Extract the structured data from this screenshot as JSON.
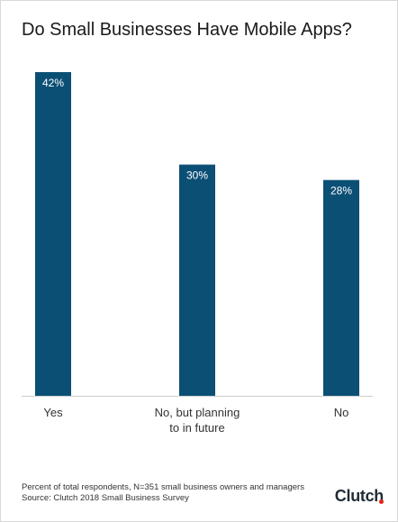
{
  "title": "Do Small Businesses Have Mobile Apps?",
  "chart_data": {
    "type": "bar",
    "categories": [
      "Yes",
      "No, but planning to in future",
      "No"
    ],
    "category_lines": [
      [
        "Yes"
      ],
      [
        "No, but planning",
        "to in future"
      ],
      [
        "No"
      ]
    ],
    "values": [
      42,
      30,
      28
    ],
    "data_labels": [
      "42%",
      "30%",
      "28%"
    ],
    "ylim": [
      0,
      42
    ],
    "bar_color": "#0b4f75",
    "axis_color": "#cccccc",
    "grid": false,
    "legend": "none"
  },
  "footnote": {
    "line1": "Percent of total respondents, N=351 small business owners and managers",
    "line2": "Source: Clutch 2018 Small Business Survey"
  },
  "brand": {
    "name": "Clutch",
    "accent_color": "#e62415"
  }
}
